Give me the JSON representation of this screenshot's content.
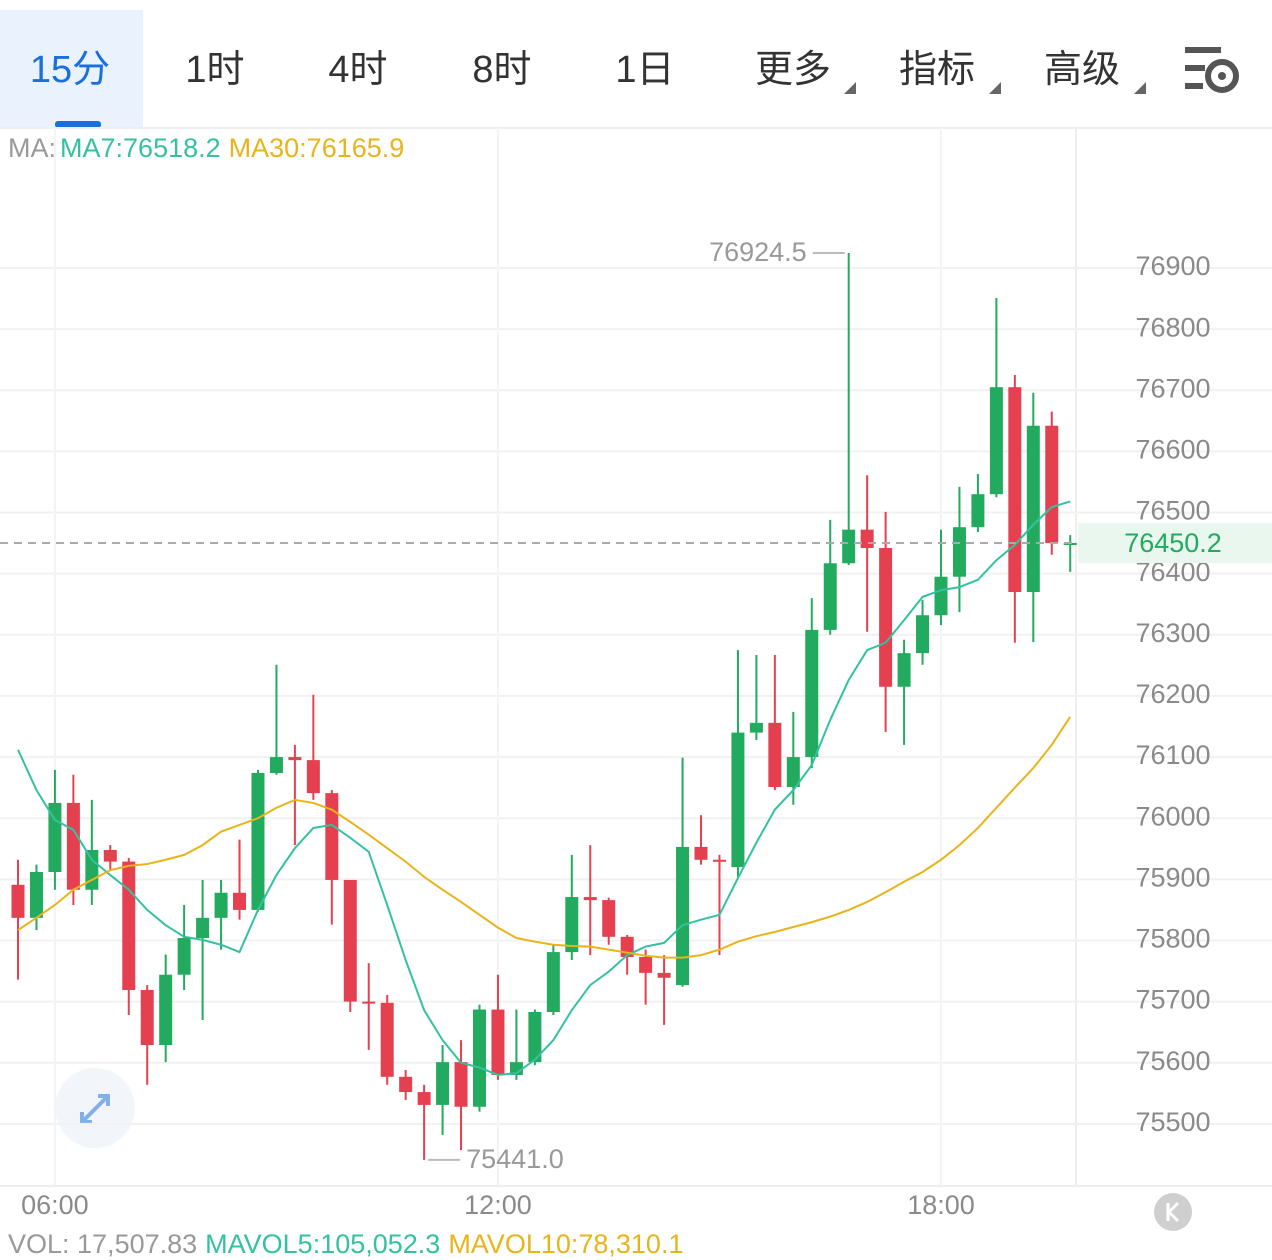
{
  "tabs": [
    "15分",
    "1时",
    "4时",
    "8时",
    "1日",
    "更多",
    "指标",
    "高级"
  ],
  "ma_legend": {
    "prefix": "MA:"
  },
  "vol_legend": {
    "vol": "VOL: 17,507.83",
    "mavol5": "MAVOL5:105,052.3",
    "mavol10": "MAVOL10:78,310.1"
  },
  "chart_data": {
    "type": "candlestick",
    "categories": [
      null,
      null,
      "06:00",
      null,
      null,
      null,
      null,
      null,
      null,
      null,
      null,
      null,
      null,
      null,
      null,
      null,
      null,
      null,
      null,
      null,
      null,
      null,
      null,
      null,
      null,
      null,
      "12:00",
      null,
      null,
      null,
      null,
      null,
      null,
      null,
      null,
      null,
      null,
      null,
      null,
      null,
      null,
      null,
      null,
      null,
      null,
      null,
      null,
      null,
      null,
      null,
      "18:00",
      null,
      null,
      null,
      null,
      null,
      null,
      null
    ],
    "open": [
      75891,
      75837,
      75912,
      76025,
      75883,
      75948,
      75929,
      75719,
      75629,
      75744,
      75804,
      75837,
      75878,
      75850,
      76074,
      76100,
      76095,
      76041,
      75899,
      75700,
      75698,
      75577,
      75552,
      75531,
      75601,
      75528,
      75687,
      75580,
      75601,
      75683,
      75781,
      75871,
      75866,
      75806,
      75773,
      75747,
      75727,
      75953,
      75932,
      75920,
      76140,
      76156,
      76051,
      76100,
      76308,
      76417,
      76472,
      76442,
      76215,
      76270,
      76332,
      76395,
      76476,
      76530,
      76705,
      76370,
      76642,
      76450
    ],
    "high": [
      75932,
      75924,
      76079,
      76071,
      76030,
      75956,
      75935,
      75727,
      75777,
      75858,
      75899,
      75899,
      75965,
      76079,
      76251,
      76120,
      76202,
      76046,
      75899,
      75763,
      75711,
      75588,
      75564,
      75629,
      75637,
      75695,
      75744,
      75687,
      75687,
      75793,
      75940,
      75956,
      75870,
      75809,
      75785,
      75776,
      76099,
      76005,
      75940,
      76275,
      76267,
      76267,
      76174,
      76360,
      76488,
      76924.5,
      76561,
      76501,
      76292,
      76357,
      76472,
      76542,
      76563,
      76851,
      76725,
      76696,
      76665,
      76463
    ],
    "low": [
      75736,
      75817,
      75883,
      75858,
      75858,
      75915,
      75678,
      75564,
      75601,
      75719,
      75670,
      75785,
      75834,
      75847,
      76071,
      75956,
      76030,
      75826,
      75683,
      75621,
      75564,
      75539,
      75441,
      75482,
      75457,
      75520,
      75572,
      75572,
      75596,
      75678,
      75768,
      75776,
      75793,
      75744,
      75695,
      75662,
      75724,
      75924,
      75776,
      75904,
      76128,
      76046,
      76022,
      76082,
      76300,
      76414,
      76305,
      76141,
      76120,
      76251,
      76316,
      76337,
      76468,
      76525,
      76287,
      76288,
      76431,
      76403
    ],
    "close": [
      75837,
      75912,
      76025,
      75883,
      75948,
      75929,
      75719,
      75629,
      75744,
      75804,
      75837,
      75878,
      75850,
      76074,
      76100,
      76095,
      76041,
      75899,
      75700,
      75698,
      75577,
      75552,
      75531,
      75601,
      75528,
      75687,
      75580,
      75601,
      75683,
      75781,
      75871,
      75866,
      75806,
      75773,
      75747,
      75739,
      75953,
      75932,
      75929,
      76140,
      76156,
      76051,
      76100,
      76308,
      76417,
      76472,
      76442,
      76215,
      76270,
      76332,
      76395,
      76476,
      76530,
      76705,
      76370,
      76642,
      76450,
      76450.2
    ],
    "up_color": "#22ab5e",
    "down_color": "#e5404f",
    "series": [
      {
        "name": "MA7:76518.2",
        "color": "#34c1a2",
        "values": [
          76112,
          76046,
          75997,
          75981,
          75932,
          75907,
          75883,
          75850,
          75825,
          75806,
          75801,
          75793,
          75781,
          75850,
          75907,
          75951,
          75984,
          75989,
          75968,
          75945,
          75858,
          75768,
          75686,
          75637,
          75600,
          75592,
          75580,
          75583,
          75605,
          75637,
          75686,
          75727,
          75749,
          75776,
          75790,
          75796,
          75825,
          75834,
          75842,
          75902,
          75960,
          76014,
          76046,
          76087,
          76161,
          76226,
          76275,
          76287,
          76324,
          76362,
          76373,
          76378,
          76390,
          76422,
          76447,
          76480,
          76509,
          76518.2
        ]
      },
      {
        "name": "MA30:76165.9",
        "color": "#e9b419",
        "values": [
          75817,
          75837,
          75858,
          75883,
          75899,
          75915,
          75922,
          75925,
          75932,
          75940,
          75956,
          75978,
          75989,
          76000,
          76017,
          76030,
          76025,
          76014,
          75994,
          75973,
          75951,
          75929,
          75904,
          75883,
          75863,
          75842,
          75821,
          75804,
          75798,
          75793,
          75791,
          75790,
          75785,
          75780,
          75775,
          75772,
          75772,
          75776,
          75785,
          75798,
          75807,
          75814,
          75822,
          75830,
          75839,
          75850,
          75863,
          75879,
          75896,
          75912,
          75932,
          75956,
          75984,
          76017,
          76050,
          76082,
          76120,
          76165.9
        ]
      }
    ],
    "ylim": [
      75400,
      77129
    ],
    "yticks": [
      75500,
      75600,
      75700,
      75800,
      75900,
      76000,
      76100,
      76200,
      76300,
      76400,
      76500,
      76600,
      76700,
      76800,
      76900
    ],
    "grid": true,
    "last_price": 76450.2,
    "high_label": 76924.5,
    "low_label": {
      "value": 75441,
      "label": "75441.0"
    }
  }
}
